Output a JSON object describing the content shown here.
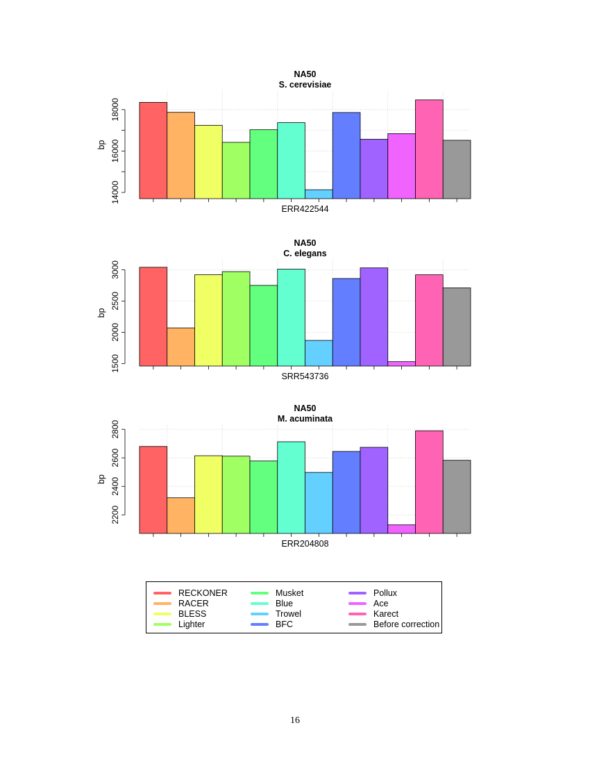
{
  "chart_data": [
    {
      "type": "bar",
      "title": "NA50",
      "subtitle": "S. cerevisiae",
      "xlabel": "ERR422544",
      "ylabel": "bp",
      "ylim": [
        13700,
        18900
      ],
      "yticks": [
        14000,
        16000,
        18000
      ],
      "minor_grid_lines": [
        15000,
        17000
      ],
      "grid": true,
      "categories": [
        "RECKONER",
        "RACER",
        "BLESS",
        "Lighter",
        "Musket",
        "Blue",
        "Trowel",
        "BFC",
        "Pollux",
        "Ace",
        "Karect",
        "Before correction"
      ],
      "values": [
        18350,
        17870,
        17240,
        16420,
        17030,
        17370,
        14130,
        17860,
        16570,
        16840,
        18470,
        16520
      ]
    },
    {
      "type": "bar",
      "title": "NA50",
      "subtitle": "C. elegans",
      "xlabel": "SRR543736",
      "ylabel": "bp",
      "ylim": [
        1460,
        3160
      ],
      "yticks": [
        1500,
        2000,
        2500,
        3000
      ],
      "grid": true,
      "categories": [
        "RECKONER",
        "RACER",
        "BLESS",
        "Lighter",
        "Musket",
        "Blue",
        "Trowel",
        "BFC",
        "Pollux",
        "Ace",
        "Karect",
        "Before correction"
      ],
      "values": [
        3040,
        2070,
        2920,
        2970,
        2750,
        3010,
        1870,
        2860,
        3030,
        1530,
        2920,
        2710
      ]
    },
    {
      "type": "bar",
      "title": "NA50",
      "subtitle": "M. acuminata",
      "xlabel": "ERR204808",
      "ylabel": "bp",
      "ylim": [
        2070,
        2830
      ],
      "yticks": [
        2200,
        2400,
        2600,
        2800
      ],
      "grid": true,
      "categories": [
        "RECKONER",
        "RACER",
        "BLESS",
        "Lighter",
        "Musket",
        "Blue",
        "Trowel",
        "BFC",
        "Pollux",
        "Ace",
        "Karect",
        "Before correction"
      ],
      "values": [
        2680,
        2320,
        2615,
        2612,
        2578,
        2713,
        2498,
        2645,
        2674,
        2130,
        2790,
        2583
      ]
    }
  ],
  "colors": [
    "#FF6363",
    "#FFB363",
    "#F0FF63",
    "#A0FF63",
    "#63FF7F",
    "#63FFD0",
    "#63D0FF",
    "#637FFF",
    "#A063FF",
    "#F063FF",
    "#FF63B3",
    "#999999"
  ],
  "legend": {
    "columns": [
      [
        {
          "label": "RECKONER",
          "color": "#FF6363"
        },
        {
          "label": "RACER",
          "color": "#FFB363"
        },
        {
          "label": "BLESS",
          "color": "#F0FF63"
        },
        {
          "label": "Lighter",
          "color": "#A0FF63"
        }
      ],
      [
        {
          "label": "Musket",
          "color": "#63FF7F"
        },
        {
          "label": "Blue",
          "color": "#63FFD0"
        },
        {
          "label": "Trowel",
          "color": "#63D0FF"
        },
        {
          "label": "BFC",
          "color": "#637FFF"
        }
      ],
      [
        {
          "label": "Pollux",
          "color": "#A063FF"
        },
        {
          "label": "Ace",
          "color": "#F063FF"
        },
        {
          "label": "Karect",
          "color": "#FF63B3"
        },
        {
          "label": "Before correction",
          "color": "#999999"
        }
      ]
    ]
  },
  "page_number": "16"
}
